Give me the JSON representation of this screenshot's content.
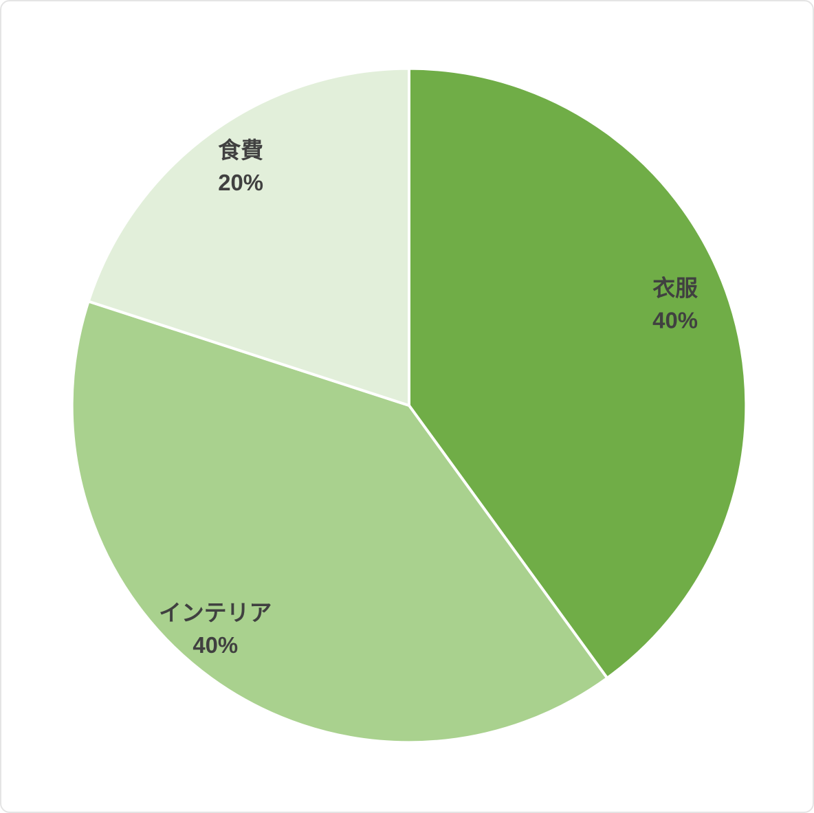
{
  "chart_data": {
    "type": "pie",
    "title": "",
    "slices": [
      {
        "label": "衣服",
        "value": 40,
        "percent_label": "40%",
        "color": "#70AD47"
      },
      {
        "label": "インテリア",
        "value": 40,
        "percent_label": "40%",
        "color": "#A9D18E"
      },
      {
        "label": "食費",
        "value": 20,
        "percent_label": "20%",
        "color": "#E2EFDA"
      }
    ],
    "start_angle_deg": 0,
    "direction": "clockwise",
    "labels": {
      "position": "inside",
      "radius_fraction": 0.86,
      "show_category": true,
      "show_percent": true,
      "color": "#404040"
    },
    "separator_color": "#FFFFFF",
    "background": "#FFFFFF",
    "legend": "none"
  }
}
